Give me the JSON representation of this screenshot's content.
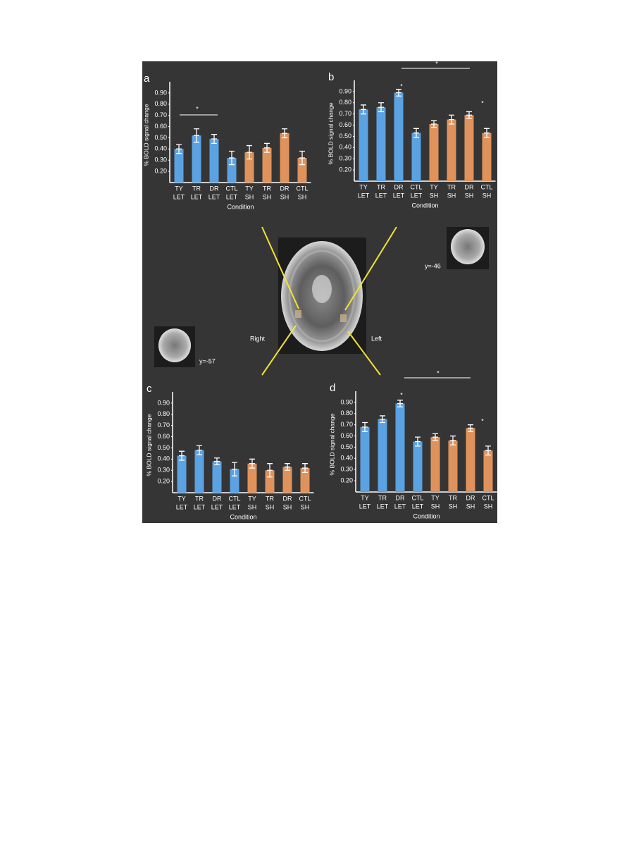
{
  "chart_data": [
    {
      "type": "bar",
      "panel": "a",
      "ylabel": "% BOLD signal change",
      "xlabel": "Condition",
      "categories": [
        [
          "TY",
          "LET"
        ],
        [
          "TR",
          "LET"
        ],
        [
          "DR",
          "LET"
        ],
        [
          "CTL",
          "LET"
        ],
        [
          "TY",
          "SH"
        ],
        [
          "TR",
          "SH"
        ],
        [
          "DR",
          "SH"
        ],
        [
          "CTL",
          "SH"
        ]
      ],
      "values": [
        0.4,
        0.52,
        0.49,
        0.32,
        0.37,
        0.41,
        0.54,
        0.32
      ],
      "errors": [
        0.04,
        0.06,
        0.04,
        0.06,
        0.06,
        0.04,
        0.04,
        0.06
      ],
      "colors": [
        "#5aa2e2",
        "#5aa2e2",
        "#5aa2e2",
        "#5aa2e2",
        "#e0925c",
        "#e0925c",
        "#e0925c",
        "#e0925c"
      ],
      "ylim": [
        0.1,
        1.0
      ],
      "yticks": [
        {
          "value": 0.2,
          "label": "0.20"
        },
        {
          "value": 0.3,
          "label": "0.30"
        },
        {
          "value": 0.4,
          "label": "0.40"
        },
        {
          "value": 0.5,
          "label": "0.50"
        },
        {
          "value": 0.6,
          "label": "0.60"
        },
        {
          "value": 0.7,
          "label": "0.70"
        },
        {
          "value": 0.8,
          "label": "0.80"
        },
        {
          "value": 0.9,
          "label": "0.90"
        }
      ],
      "annotations": [
        "*"
      ]
    },
    {
      "type": "bar",
      "panel": "b",
      "ylabel": "% BOLD signal change",
      "xlabel": "Condition",
      "categories": [
        [
          "TY",
          "LET"
        ],
        [
          "TR",
          "LET"
        ],
        [
          "DR",
          "LET"
        ],
        [
          "CTL",
          "LET"
        ],
        [
          "TY",
          "SH"
        ],
        [
          "TR",
          "SH"
        ],
        [
          "DR",
          "SH"
        ],
        [
          "CTL",
          "SH"
        ]
      ],
      "values": [
        0.74,
        0.76,
        0.89,
        0.53,
        0.61,
        0.65,
        0.69,
        0.53
      ],
      "errors": [
        0.04,
        0.04,
        0.03,
        0.04,
        0.03,
        0.04,
        0.03,
        0.04
      ],
      "colors": [
        "#5aa2e2",
        "#5aa2e2",
        "#5aa2e2",
        "#5aa2e2",
        "#e0925c",
        "#e0925c",
        "#e0925c",
        "#e0925c"
      ],
      "ylim": [
        0.1,
        1.0
      ],
      "yticks": [
        {
          "value": 0.2,
          "label": "0.20"
        },
        {
          "value": 0.3,
          "label": "0.30"
        },
        {
          "value": 0.4,
          "label": "0.40"
        },
        {
          "value": 0.5,
          "label": "0.50"
        },
        {
          "value": 0.6,
          "label": "0.60"
        },
        {
          "value": 0.7,
          "label": "0.70"
        },
        {
          "value": 0.8,
          "label": "0.80"
        },
        {
          "value": 0.9,
          "label": "0.90"
        }
      ],
      "annotations": [
        "*",
        "*",
        "*"
      ]
    },
    {
      "type": "bar",
      "panel": "c",
      "ylabel": "% BOLD signal change",
      "xlabel": "Condition",
      "categories": [
        [
          "TY",
          "LET"
        ],
        [
          "TR",
          "LET"
        ],
        [
          "DR",
          "LET"
        ],
        [
          "CTL",
          "LET"
        ],
        [
          "TY",
          "SH"
        ],
        [
          "TR",
          "SH"
        ],
        [
          "DR",
          "SH"
        ],
        [
          "CTL",
          "SH"
        ]
      ],
      "values": [
        0.43,
        0.48,
        0.38,
        0.31,
        0.36,
        0.3,
        0.33,
        0.32
      ],
      "errors": [
        0.04,
        0.04,
        0.03,
        0.06,
        0.04,
        0.06,
        0.03,
        0.04
      ],
      "colors": [
        "#5aa2e2",
        "#5aa2e2",
        "#5aa2e2",
        "#5aa2e2",
        "#e0925c",
        "#e0925c",
        "#e0925c",
        "#e0925c"
      ],
      "ylim": [
        0.1,
        1.0
      ],
      "yticks": [
        {
          "value": 0.2,
          "label": "0.20"
        },
        {
          "value": 0.3,
          "label": "0.30"
        },
        {
          "value": 0.4,
          "label": "0.40"
        },
        {
          "value": 0.5,
          "label": "0.50"
        },
        {
          "value": 0.6,
          "label": "0.60"
        },
        {
          "value": 0.7,
          "label": "0.70"
        },
        {
          "value": 0.8,
          "label": "0.80"
        },
        {
          "value": 0.9,
          "label": "0.90"
        }
      ]
    },
    {
      "type": "bar",
      "panel": "d",
      "ylabel": "% BOLD signal change",
      "xlabel": "Condition",
      "categories": [
        [
          "TY",
          "LET"
        ],
        [
          "TR",
          "LET"
        ],
        [
          "DR",
          "LET"
        ],
        [
          "CTL",
          "LET"
        ],
        [
          "TY",
          "SH"
        ],
        [
          "TR",
          "SH"
        ],
        [
          "DR",
          "SH"
        ],
        [
          "CTL",
          "SH"
        ]
      ],
      "values": [
        0.68,
        0.75,
        0.89,
        0.55,
        0.59,
        0.56,
        0.67,
        0.47
      ],
      "errors": [
        0.04,
        0.03,
        0.03,
        0.04,
        0.03,
        0.04,
        0.03,
        0.04
      ],
      "colors": [
        "#5aa2e2",
        "#5aa2e2",
        "#5aa2e2",
        "#5aa2e2",
        "#e0925c",
        "#e0925c",
        "#e0925c",
        "#e0925c"
      ],
      "ylim": [
        0.1,
        1.0
      ],
      "yticks": [
        {
          "value": 0.2,
          "label": "0.20"
        },
        {
          "value": 0.3,
          "label": "0.30"
        },
        {
          "value": 0.4,
          "label": "0.40"
        },
        {
          "value": 0.5,
          "label": "0.50"
        },
        {
          "value": 0.6,
          "label": "0.60"
        },
        {
          "value": 0.7,
          "label": "0.70"
        },
        {
          "value": 0.8,
          "label": "0.80"
        },
        {
          "value": 0.9,
          "label": "0.90"
        }
      ],
      "annotations": [
        "*",
        "*",
        "*"
      ]
    }
  ],
  "figure_labels": {
    "right": "Right",
    "left": "Left",
    "coronal_top": "y=-46",
    "coronal_bottom": "y=-57"
  }
}
